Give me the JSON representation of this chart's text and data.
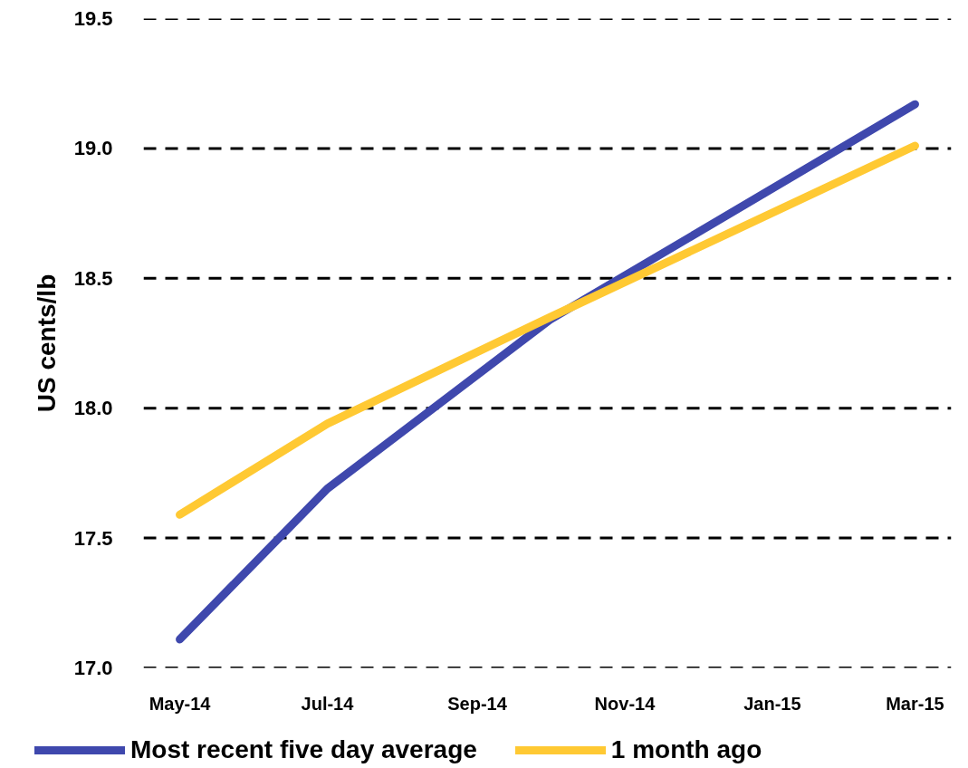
{
  "chart_data": {
    "type": "line",
    "ylabel": "US cents/lb",
    "x": [
      "2014-05",
      "2014-07",
      "2014-10",
      "2015-03"
    ],
    "xlim": [
      "2014-04-16",
      "2015-03-16"
    ],
    "xticks": [
      {
        "value": "2014-05",
        "label": "May-14"
      },
      {
        "value": "2014-07",
        "label": "Jul-14"
      },
      {
        "value": "2014-09",
        "label": "Sep-14"
      },
      {
        "value": "2014-11",
        "label": "Nov-14"
      },
      {
        "value": "2015-01",
        "label": "Jan-15"
      },
      {
        "value": "2015-03",
        "label": "Mar-15"
      }
    ],
    "ylim": [
      17.0,
      19.5
    ],
    "yticks": [
      {
        "value": 17.0,
        "label": "17.0"
      },
      {
        "value": 17.5,
        "label": "17.5"
      },
      {
        "value": 18.0,
        "label": "18.0"
      },
      {
        "value": 18.5,
        "label": "18.5"
      },
      {
        "value": 19.0,
        "label": "19.0"
      },
      {
        "value": 19.5,
        "label": "19.5"
      }
    ],
    "series": [
      {
        "name": "Most recent five day average",
        "color": "#3f48ad",
        "values": [
          17.11,
          17.69,
          18.34,
          19.17
        ]
      },
      {
        "name": "1 month ago",
        "color": "#ffc933",
        "values": [
          17.59,
          17.94,
          18.35,
          19.01
        ]
      }
    ],
    "grid": "y",
    "legend": "bottom",
    "line_style": "solid"
  }
}
